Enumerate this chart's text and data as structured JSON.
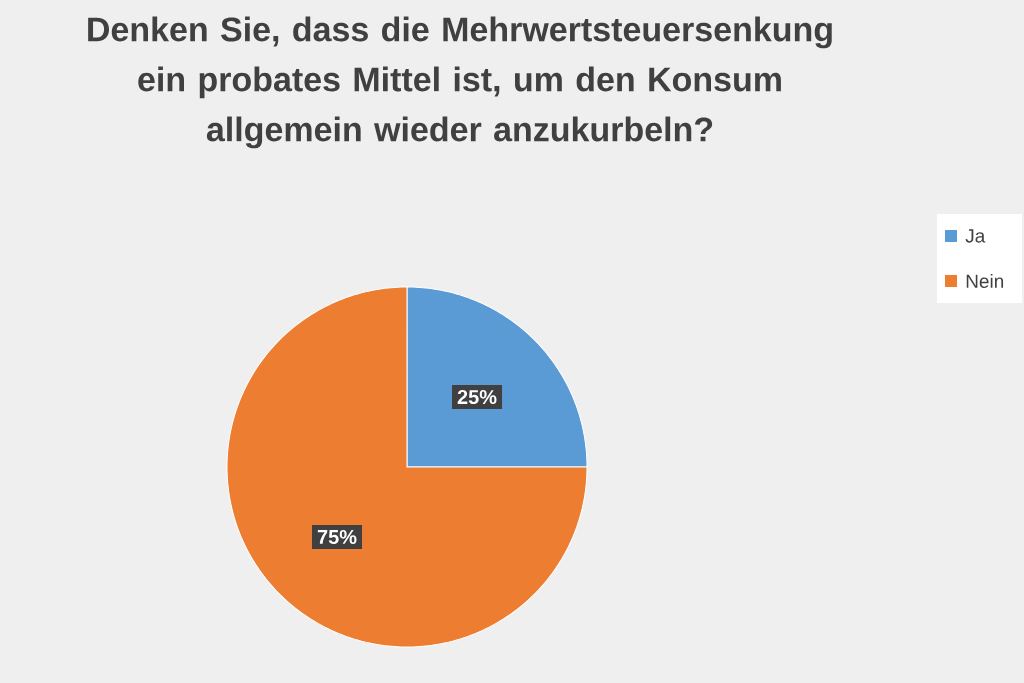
{
  "chart_data": {
    "type": "pie",
    "title": "Denken Sie, dass die Mehrwertsteuersenkung ein probates Mittel ist, um den Konsum allgemein wieder anzukurbeln?",
    "categories": [
      "Ja",
      "Nein"
    ],
    "values": [
      25,
      75
    ],
    "colors": [
      "#5b9bd5",
      "#ed7d31"
    ],
    "value_labels": [
      "25%",
      "75%"
    ],
    "legend": "right"
  }
}
